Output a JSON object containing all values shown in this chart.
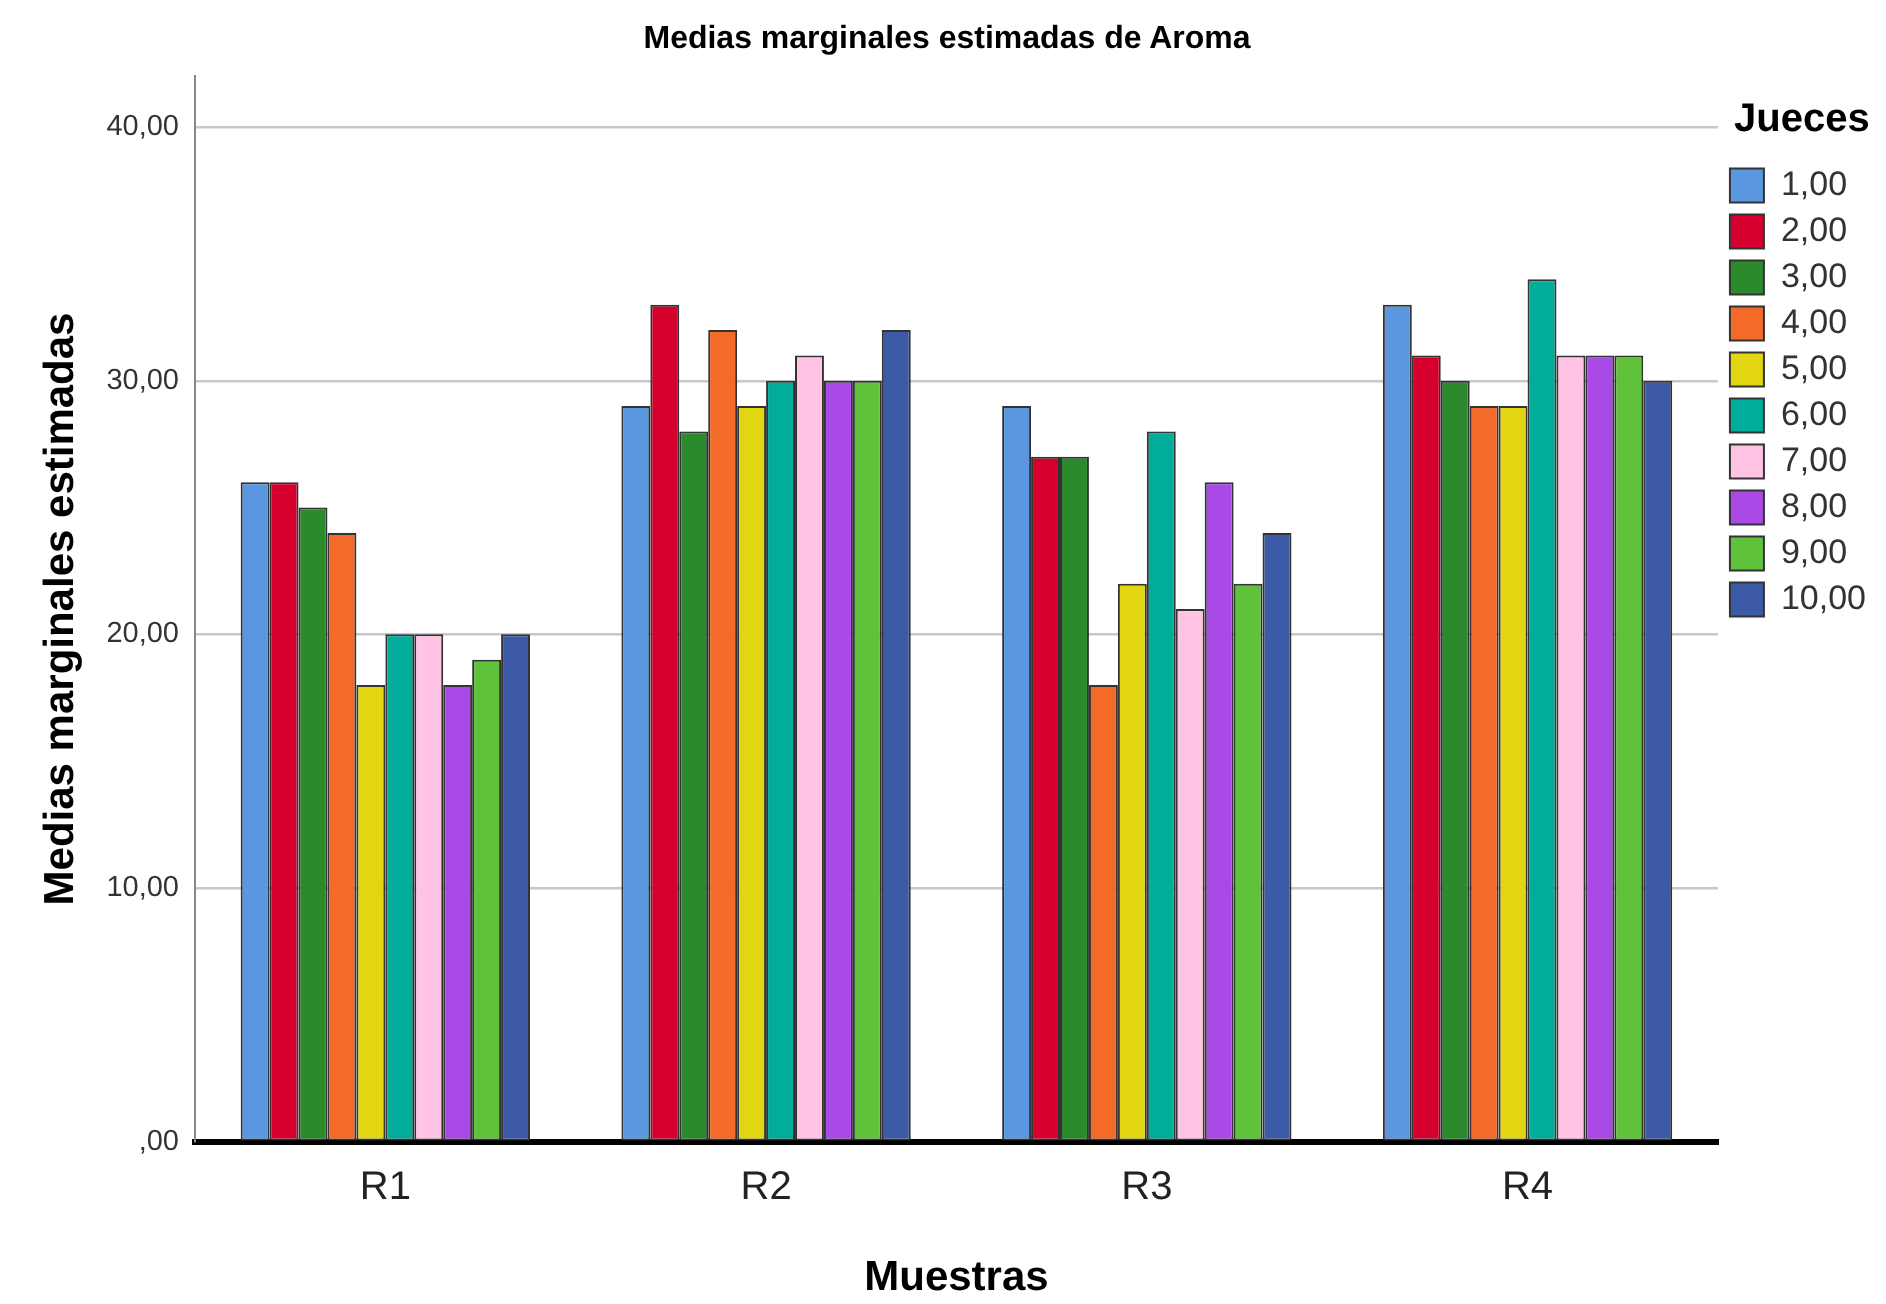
{
  "chart_data": {
    "type": "bar",
    "title": "Medias marginales estimadas de Aroma",
    "xlabel": "Muestras",
    "ylabel": "Medias marginales estimadas",
    "legend_title": "Jueces",
    "categories": [
      "R1",
      "R2",
      "R3",
      "R4"
    ],
    "series": [
      {
        "name": "1,00",
        "color": "#5b96e0",
        "values": [
          26,
          29,
          29,
          33
        ]
      },
      {
        "name": "2,00",
        "color": "#d5002d",
        "values": [
          26,
          33,
          27,
          31
        ]
      },
      {
        "name": "3,00",
        "color": "#2b8a2b",
        "values": [
          25,
          28,
          27,
          30
        ]
      },
      {
        "name": "4,00",
        "color": "#f46a28",
        "values": [
          24,
          32,
          18,
          29
        ]
      },
      {
        "name": "5,00",
        "color": "#e2d512",
        "values": [
          18,
          29,
          22,
          29
        ]
      },
      {
        "name": "6,00",
        "color": "#00ac9a",
        "values": [
          20,
          30,
          28,
          34
        ]
      },
      {
        "name": "7,00",
        "color": "#ffc4e4",
        "values": [
          20,
          31,
          21,
          31
        ]
      },
      {
        "name": "8,00",
        "color": "#a94ae6",
        "values": [
          18,
          30,
          26,
          31
        ]
      },
      {
        "name": "9,00",
        "color": "#5fc23a",
        "values": [
          19,
          30,
          22,
          31
        ]
      },
      {
        "name": "10,00",
        "color": "#3d5aa6",
        "values": [
          20,
          32,
          24,
          30
        ]
      }
    ],
    "ylim": [
      0,
      42
    ],
    "yticks": [
      {
        "value": 0,
        "label": ",00"
      },
      {
        "value": 10,
        "label": "10,00"
      },
      {
        "value": 20,
        "label": "20,00"
      },
      {
        "value": 30,
        "label": "30,00"
      },
      {
        "value": 40,
        "label": "40,00"
      }
    ],
    "grid": "y",
    "legend": "right"
  }
}
